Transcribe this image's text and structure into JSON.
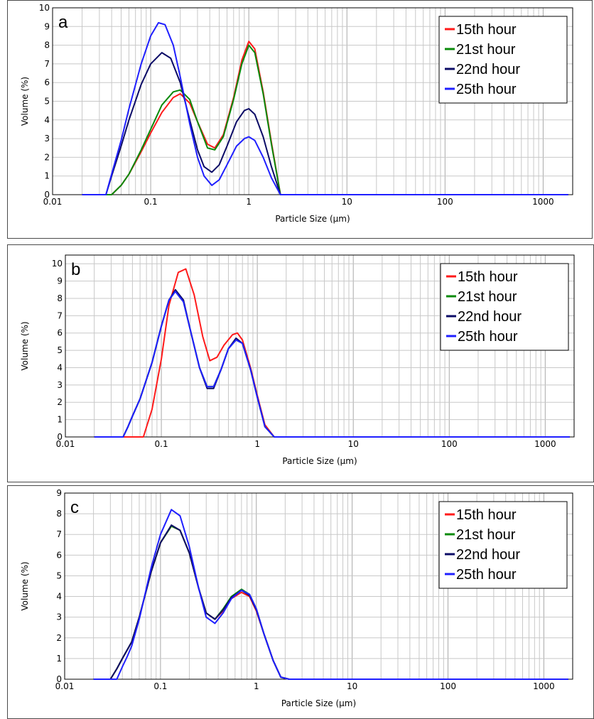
{
  "colors": {
    "15th hour": "#ff1a1a",
    "21st hour": "#0a8a0a",
    "22nd hour": "#0b0b66",
    "25th hour": "#1f1fff"
  },
  "chart_data": [
    {
      "type": "line",
      "panel": "a",
      "xlabel": "Particle Size (µm)",
      "ylabel": "Volume (%)",
      "x_scale": "log",
      "xlim": [
        0.01,
        2000
      ],
      "ylim": [
        0,
        10
      ],
      "yticks": [
        0,
        1,
        2,
        3,
        4,
        5,
        6,
        7,
        8,
        9,
        10
      ],
      "xticks": [
        0.01,
        0.1,
        1,
        10,
        100,
        1000
      ],
      "xtick_labels": [
        "0.01",
        "0.1",
        "1",
        "10",
        "100",
        "1000"
      ],
      "grid": true,
      "legend_position": "top-right",
      "series": [
        {
          "name": "15th hour",
          "x": [
            0.02,
            0.035,
            0.04,
            0.05,
            0.06,
            0.08,
            0.1,
            0.13,
            0.17,
            0.2,
            0.25,
            0.3,
            0.38,
            0.45,
            0.55,
            0.7,
            0.85,
            1.0,
            1.15,
            1.4,
            1.7,
            2.1,
            2.5,
            10,
            100,
            1800
          ],
          "y": [
            0,
            0,
            0,
            0.5,
            1.1,
            2.3,
            3.3,
            4.4,
            5.2,
            5.4,
            4.9,
            3.9,
            2.7,
            2.5,
            3.2,
            5.2,
            7.2,
            8.2,
            7.8,
            5.5,
            2.8,
            0,
            0,
            0,
            0,
            0
          ]
        },
        {
          "name": "21st hour",
          "x": [
            0.02,
            0.035,
            0.04,
            0.05,
            0.06,
            0.08,
            0.1,
            0.13,
            0.17,
            0.2,
            0.25,
            0.3,
            0.38,
            0.45,
            0.55,
            0.7,
            0.85,
            1.0,
            1.15,
            1.4,
            1.7,
            2.1,
            2.5,
            10,
            100,
            1800
          ],
          "y": [
            0,
            0,
            0,
            0.5,
            1.1,
            2.4,
            3.5,
            4.8,
            5.5,
            5.6,
            5.1,
            3.9,
            2.5,
            2.4,
            3.1,
            5.1,
            7.0,
            8.0,
            7.6,
            5.4,
            2.7,
            0,
            0,
            0,
            0,
            0
          ]
        },
        {
          "name": "22nd hour",
          "x": [
            0.02,
            0.03,
            0.035,
            0.04,
            0.05,
            0.06,
            0.08,
            0.1,
            0.13,
            0.16,
            0.2,
            0.25,
            0.3,
            0.35,
            0.42,
            0.5,
            0.6,
            0.75,
            0.9,
            1.0,
            1.15,
            1.4,
            1.7,
            2.1,
            2.5,
            10,
            100,
            1800
          ],
          "y": [
            0,
            0,
            0,
            1.0,
            2.6,
            4.0,
            5.9,
            7.0,
            7.6,
            7.3,
            6.0,
            4.0,
            2.4,
            1.5,
            1.2,
            1.6,
            2.6,
            3.9,
            4.5,
            4.6,
            4.3,
            3.1,
            1.5,
            0,
            0,
            0,
            0,
            0
          ]
        },
        {
          "name": "25th hour",
          "x": [
            0.02,
            0.03,
            0.035,
            0.04,
            0.05,
            0.06,
            0.08,
            0.1,
            0.12,
            0.14,
            0.17,
            0.2,
            0.25,
            0.3,
            0.35,
            0.42,
            0.5,
            0.6,
            0.75,
            0.9,
            1.0,
            1.15,
            1.4,
            1.7,
            2.1,
            2.5,
            10,
            100,
            1800
          ],
          "y": [
            0,
            0,
            0,
            1.1,
            2.9,
            4.6,
            7.0,
            8.5,
            9.2,
            9.1,
            8.0,
            6.3,
            3.8,
            2.0,
            1.0,
            0.5,
            0.8,
            1.6,
            2.6,
            3.0,
            3.1,
            2.9,
            2.0,
            0.9,
            0,
            0,
            0,
            0,
            0
          ]
        }
      ]
    },
    {
      "type": "line",
      "panel": "b",
      "xlabel": "Particle Size (µm)",
      "ylabel": "Volume (%)",
      "x_scale": "log",
      "xlim": [
        0.01,
        2000
      ],
      "ylim": [
        0,
        10.5
      ],
      "yticks": [
        0,
        1,
        2,
        3,
        4,
        5,
        6,
        7,
        8,
        9,
        10
      ],
      "xticks": [
        0.01,
        0.1,
        1,
        10,
        100,
        1000
      ],
      "xtick_labels": [
        "0.01",
        "0.1",
        "1",
        "10",
        "100",
        "1000"
      ],
      "grid": true,
      "legend_position": "top-right",
      "series": [
        {
          "name": "15th hour",
          "x": [
            0.02,
            0.05,
            0.06,
            0.065,
            0.08,
            0.1,
            0.12,
            0.15,
            0.18,
            0.22,
            0.27,
            0.32,
            0.38,
            0.45,
            0.55,
            0.62,
            0.7,
            0.85,
            1.0,
            1.2,
            1.5,
            2,
            10,
            100,
            1800
          ],
          "y": [
            0,
            0,
            0,
            0,
            1.6,
            4.5,
            7.6,
            9.5,
            9.7,
            8.2,
            5.8,
            4.4,
            4.6,
            5.3,
            5.9,
            6.0,
            5.6,
            4.0,
            2.4,
            0.7,
            0,
            0,
            0,
            0,
            0
          ]
        },
        {
          "name": "21st hour",
          "x": [
            0.02,
            0.035,
            0.04,
            0.045,
            0.05,
            0.06,
            0.08,
            0.1,
            0.12,
            0.14,
            0.17,
            0.2,
            0.25,
            0.3,
            0.35,
            0.42,
            0.5,
            0.6,
            0.7,
            0.85,
            1.0,
            1.2,
            1.5,
            2,
            10,
            100,
            1800
          ],
          "y": [
            0,
            0,
            0,
            0.6,
            1.2,
            2.2,
            4.3,
            6.4,
            7.9,
            8.4,
            7.8,
            6.2,
            4.0,
            2.9,
            2.9,
            3.9,
            5.1,
            5.6,
            5.4,
            3.9,
            2.3,
            0.6,
            0,
            0,
            0,
            0,
            0
          ]
        },
        {
          "name": "22nd hour",
          "x": [
            0.02,
            0.035,
            0.04,
            0.045,
            0.05,
            0.06,
            0.08,
            0.1,
            0.12,
            0.14,
            0.17,
            0.2,
            0.25,
            0.3,
            0.35,
            0.42,
            0.5,
            0.6,
            0.7,
            0.85,
            1.0,
            1.2,
            1.5,
            2,
            10,
            100,
            1800
          ],
          "y": [
            0,
            0,
            0,
            0.6,
            1.2,
            2.2,
            4.3,
            6.4,
            7.9,
            8.5,
            7.9,
            6.2,
            4.0,
            2.8,
            2.8,
            3.9,
            5.1,
            5.7,
            5.4,
            3.9,
            2.3,
            0.6,
            0,
            0,
            0,
            0,
            0
          ]
        },
        {
          "name": "25th hour",
          "x": [
            0.02,
            0.035,
            0.04,
            0.045,
            0.05,
            0.06,
            0.08,
            0.1,
            0.12,
            0.14,
            0.17,
            0.2,
            0.25,
            0.3,
            0.35,
            0.42,
            0.5,
            0.6,
            0.7,
            0.85,
            1.0,
            1.2,
            1.5,
            2,
            10,
            100,
            1800
          ],
          "y": [
            0,
            0,
            0,
            0.6,
            1.2,
            2.2,
            4.3,
            6.4,
            7.9,
            8.4,
            7.8,
            6.2,
            4.0,
            2.9,
            2.9,
            3.9,
            5.1,
            5.6,
            5.4,
            3.9,
            2.3,
            0.6,
            0,
            0,
            0,
            0,
            0
          ]
        }
      ]
    },
    {
      "type": "line",
      "panel": "c",
      "xlabel": "Particle Size (µm)",
      "ylabel": "Volume (%)",
      "x_scale": "log",
      "xlim": [
        0.01,
        2000
      ],
      "ylim": [
        0,
        9
      ],
      "yticks": [
        0,
        1,
        2,
        3,
        4,
        5,
        6,
        7,
        8,
        9
      ],
      "xticks": [
        0.01,
        0.1,
        1,
        10,
        100,
        1000
      ],
      "xtick_labels": [
        "0.01",
        "0.1",
        "1",
        "10",
        "100",
        "1000"
      ],
      "grid": true,
      "legend_position": "top-right",
      "series": [
        {
          "name": "15th hour",
          "x": [
            0.02,
            0.03,
            0.035,
            0.04,
            0.05,
            0.06,
            0.08,
            0.1,
            0.13,
            0.16,
            0.2,
            0.25,
            0.3,
            0.37,
            0.45,
            0.55,
            0.7,
            0.85,
            1.0,
            1.2,
            1.5,
            1.8,
            2.2,
            10,
            100,
            1800
          ],
          "y": [
            0,
            0,
            0.5,
            1.0,
            1.8,
            3.0,
            5.2,
            6.6,
            7.4,
            7.2,
            6.1,
            4.4,
            3.2,
            2.9,
            3.3,
            3.9,
            4.2,
            4.0,
            3.3,
            2.2,
            0.9,
            0.1,
            0,
            0,
            0,
            0
          ]
        },
        {
          "name": "21st hour",
          "x": [
            0.02,
            0.03,
            0.035,
            0.04,
            0.05,
            0.06,
            0.08,
            0.1,
            0.13,
            0.16,
            0.2,
            0.25,
            0.3,
            0.37,
            0.45,
            0.55,
            0.7,
            0.85,
            1.0,
            1.2,
            1.5,
            1.8,
            2.2,
            10,
            100,
            1800
          ],
          "y": [
            0,
            0,
            0.5,
            1.0,
            1.8,
            3.0,
            5.2,
            6.6,
            7.4,
            7.2,
            6.1,
            4.4,
            3.2,
            2.9,
            3.4,
            4.0,
            4.35,
            4.1,
            3.4,
            2.2,
            0.9,
            0.1,
            0,
            0,
            0,
            0
          ]
        },
        {
          "name": "22nd hour",
          "x": [
            0.02,
            0.03,
            0.035,
            0.04,
            0.05,
            0.06,
            0.08,
            0.1,
            0.13,
            0.16,
            0.2,
            0.25,
            0.3,
            0.37,
            0.45,
            0.55,
            0.7,
            0.85,
            1.0,
            1.2,
            1.5,
            1.8,
            2.2,
            10,
            100,
            1800
          ],
          "y": [
            0,
            0,
            0.5,
            1.0,
            1.8,
            3.0,
            5.2,
            6.6,
            7.45,
            7.2,
            6.1,
            4.4,
            3.2,
            2.9,
            3.35,
            3.95,
            4.3,
            4.05,
            3.35,
            2.2,
            0.9,
            0.1,
            0,
            0,
            0,
            0
          ]
        },
        {
          "name": "25th hour",
          "x": [
            0.02,
            0.035,
            0.04,
            0.045,
            0.05,
            0.06,
            0.08,
            0.1,
            0.13,
            0.16,
            0.2,
            0.25,
            0.3,
            0.37,
            0.45,
            0.55,
            0.7,
            0.85,
            1.0,
            1.2,
            1.5,
            1.8,
            2.2,
            10,
            100,
            1800
          ],
          "y": [
            0,
            0,
            0.6,
            1.1,
            1.6,
            2.9,
            5.4,
            7.0,
            8.2,
            7.9,
            6.4,
            4.4,
            3.0,
            2.7,
            3.2,
            3.9,
            4.3,
            4.1,
            3.4,
            2.2,
            0.9,
            0.1,
            0,
            0,
            0,
            0
          ]
        }
      ]
    }
  ]
}
